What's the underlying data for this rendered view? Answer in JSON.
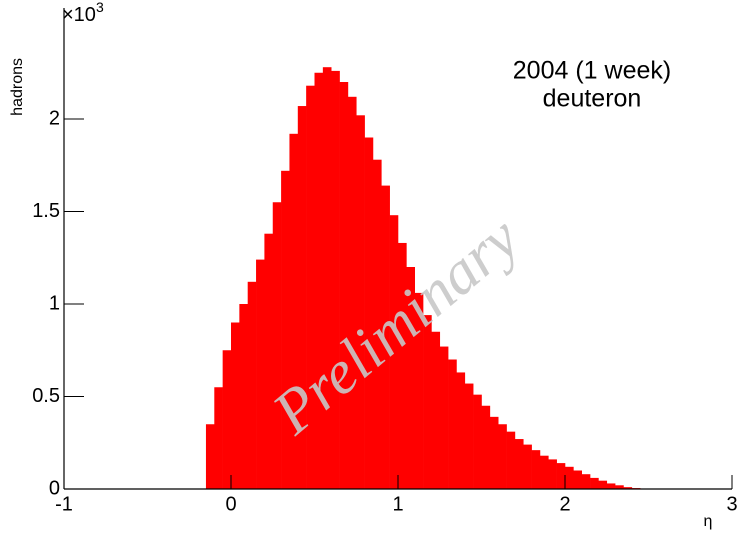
{
  "chart_data": {
    "type": "histogram",
    "xlabel": "η",
    "ylabel": "hadrons",
    "y_scale_label": "×10",
    "y_scale_exponent": "3",
    "annotations": [
      "2004 (1 week)",
      "deuteron"
    ],
    "watermark": "Preliminary",
    "color": "#ff0000",
    "bins": [
      -0.15,
      -0.1,
      -0.05,
      0,
      0.05,
      0.1,
      0.15,
      0.2,
      0.25,
      0.3,
      0.35,
      0.4,
      0.45,
      0.5,
      0.55,
      0.6,
      0.65,
      0.7,
      0.75,
      0.8,
      0.85,
      0.9,
      0.95,
      1,
      1.05,
      1.1,
      1.15,
      1.2,
      1.25,
      1.3,
      1.35,
      1.4,
      1.45,
      1.5,
      1.55,
      1.6,
      1.65,
      1.7,
      1.75,
      1.8,
      1.85,
      1.9,
      1.95,
      2,
      2.05,
      2.1,
      2.15,
      2.2,
      2.25,
      2.3,
      2.35,
      2.4,
      2.45
    ],
    "values": [
      0.35,
      0.55,
      0.75,
      0.9,
      1.0,
      1.12,
      1.24,
      1.38,
      1.55,
      1.72,
      1.92,
      2.07,
      2.18,
      2.25,
      2.28,
      2.26,
      2.2,
      2.12,
      2.02,
      1.9,
      1.78,
      1.64,
      1.48,
      1.33,
      1.2,
      1.06,
      0.94,
      0.85,
      0.77,
      0.7,
      0.63,
      0.57,
      0.51,
      0.45,
      0.39,
      0.35,
      0.31,
      0.27,
      0.24,
      0.21,
      0.18,
      0.16,
      0.14,
      0.12,
      0.1,
      0.08,
      0.06,
      0.045,
      0.03,
      0.02,
      0.01,
      0.005
    ],
    "xlim": [
      -1,
      3
    ],
    "xticks": [
      -1,
      0,
      1,
      2,
      3
    ],
    "ylim": [
      0,
      2.6
    ],
    "yticks": [
      0,
      0.5,
      1,
      1.5,
      2
    ]
  }
}
